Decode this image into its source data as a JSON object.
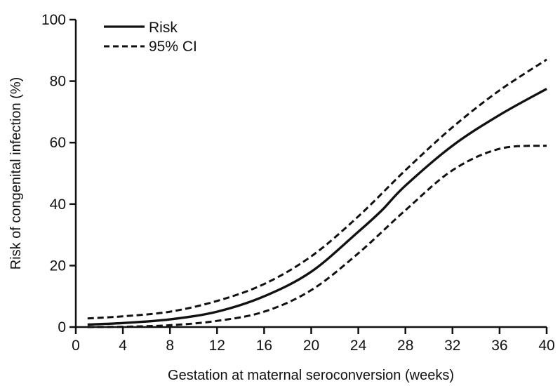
{
  "chart_data": {
    "type": "line",
    "title": "",
    "xlabel": "Gestation at maternal seroconversion (weeks)",
    "ylabel": "Risk of congenital infection (%)",
    "xlim": [
      0,
      40
    ],
    "ylim": [
      0,
      100
    ],
    "xticks": [
      "0",
      "4",
      "8",
      "12",
      "16",
      "20",
      "24",
      "28",
      "32",
      "36",
      "40"
    ],
    "yticks": [
      "0",
      "20",
      "40",
      "60",
      "80",
      "100"
    ],
    "grid": false,
    "legend": {
      "placement": "top-left",
      "entries": [
        {
          "label": "Risk",
          "style": "solid"
        },
        {
          "label": "95% CI",
          "style": "dashed"
        }
      ]
    },
    "series": [
      {
        "name": "Risk",
        "style": "solid",
        "x": [
          1,
          4,
          8,
          12,
          16,
          20,
          24,
          26,
          28,
          32,
          36,
          40
        ],
        "y": [
          0.8,
          1.3,
          2.5,
          5,
          10,
          18,
          31,
          38,
          46,
          59,
          69,
          77.5
        ]
      },
      {
        "name": "95% CI upper",
        "style": "dashed",
        "x": [
          1,
          4,
          8,
          12,
          16,
          20,
          24,
          28,
          32,
          36,
          40
        ],
        "y": [
          2.8,
          3.5,
          5,
          8.5,
          14,
          23,
          36,
          51,
          65,
          77,
          87
        ]
      },
      {
        "name": "95% CI lower",
        "style": "dashed",
        "x": [
          1,
          4,
          8,
          12,
          16,
          20,
          24,
          28,
          32,
          36,
          40
        ],
        "y": [
          0,
          0.1,
          0.6,
          2,
          5,
          12,
          24,
          38,
          51,
          58,
          59
        ]
      }
    ]
  }
}
